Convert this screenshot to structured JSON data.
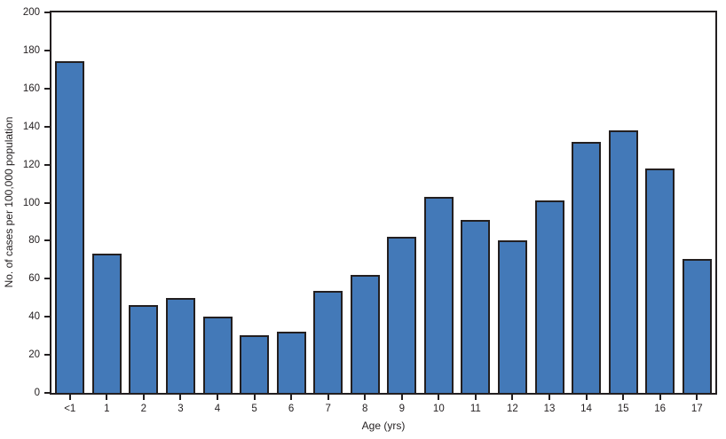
{
  "chart_data": {
    "type": "bar",
    "title": "",
    "xlabel": "Age (yrs)",
    "ylabel": "No. of cases per 100,000 population",
    "categories": [
      "<1",
      "1",
      "2",
      "3",
      "4",
      "5",
      "6",
      "7",
      "8",
      "9",
      "10",
      "11",
      "12",
      "13",
      "14",
      "15",
      "16",
      "17"
    ],
    "values": [
      174.5,
      73,
      46,
      50,
      40,
      30.5,
      32,
      53.5,
      62,
      82,
      103,
      91,
      80,
      101,
      132,
      138,
      118,
      70.5
    ],
    "ylim": [
      0,
      200
    ],
    "yticks": [
      0,
      20,
      40,
      60,
      80,
      100,
      120,
      140,
      160,
      180,
      200
    ],
    "grid": false,
    "legend": false,
    "bar_fill": "#4379B8",
    "bar_stroke": "#231F20",
    "axis_color": "#231F20"
  }
}
